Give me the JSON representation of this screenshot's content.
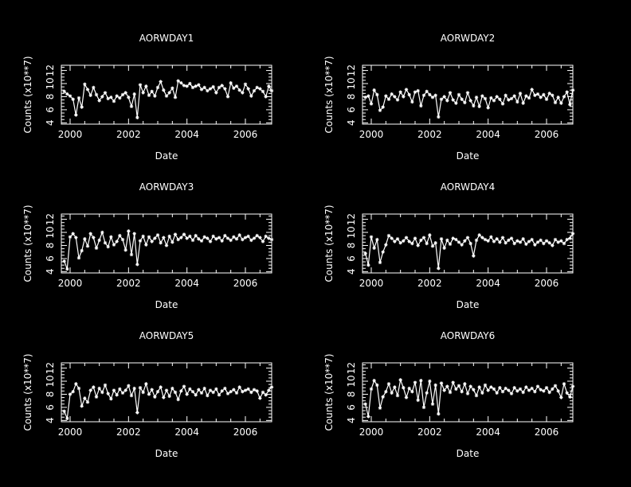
{
  "colors": {
    "background": "#000000",
    "foreground": "#ffffff"
  },
  "chart_data": [
    {
      "type": "line",
      "title": "AORWDAY1",
      "xlabel": "Date",
      "ylabel": "Counts (x10**7)",
      "xlim": [
        1999.7,
        2006.9
      ],
      "ylim": [
        3.8,
        12.8
      ],
      "xticks": [
        "2000",
        "2002",
        "2004",
        "2006"
      ],
      "yticks": [
        "4",
        "6",
        "8",
        "10",
        "12"
      ],
      "marker": "asterisk",
      "series": [
        {
          "x": [
            1999.8,
            1999.9,
            2000.0,
            2000.1,
            2000.2,
            2000.3,
            2000.4,
            2000.5,
            2000.6,
            2000.7,
            2000.8,
            2000.9,
            2001.0,
            2001.1,
            2001.2,
            2001.3,
            2001.4,
            2001.5,
            2001.6,
            2001.7,
            2001.8,
            2001.9,
            2002.0,
            2002.1,
            2002.2,
            2002.3,
            2002.4,
            2002.5,
            2002.6,
            2002.7,
            2002.8,
            2002.9,
            2003.0,
            2003.1,
            2003.2,
            2003.3,
            2003.4,
            2003.5,
            2003.6,
            2003.7,
            2003.8,
            2003.9,
            2004.0,
            2004.1,
            2004.2,
            2004.3,
            2004.4,
            2004.5,
            2004.6,
            2004.7,
            2004.8,
            2004.9,
            2005.0,
            2005.1,
            2005.2,
            2005.3,
            2005.4,
            2005.5,
            2005.6,
            2005.7,
            2005.8,
            2005.9,
            2006.0,
            2006.1,
            2006.2,
            2006.3,
            2006.4,
            2006.5,
            2006.6,
            2006.7,
            2006.8,
            2006.9
          ],
          "y": [
            8.8,
            8.4,
            8.1,
            7.6,
            5.2,
            7.8,
            6.4,
            9.9,
            9.1,
            8.2,
            9.4,
            8.3,
            7.4,
            8.0,
            8.6,
            7.7,
            7.9,
            7.3,
            8.1,
            7.8,
            8.3,
            8.6,
            7.9,
            6.5,
            8.4,
            4.8,
            9.8,
            8.6,
            9.6,
            8.2,
            8.8,
            8.1,
            9.4,
            10.3,
            9.0,
            8.1,
            8.6,
            9.3,
            7.9,
            10.4,
            10.1,
            9.7,
            9.6,
            10.0,
            9.4,
            9.6,
            9.8,
            9.1,
            9.4,
            8.9,
            9.2,
            9.5,
            8.6,
            9.4,
            9.7,
            9.2,
            8.0,
            10.1,
            9.3,
            9.6,
            9.0,
            8.6,
            9.9,
            9.2,
            8.1,
            8.9,
            9.4,
            9.2,
            8.8,
            8.0,
            9.6,
            8.9
          ]
        }
      ]
    },
    {
      "type": "line",
      "title": "AORWDAY2",
      "xlabel": "Date",
      "ylabel": "Counts (x10**7)",
      "xlim": [
        1999.7,
        2006.9
      ],
      "ylim": [
        3.8,
        12.8
      ],
      "xticks": [
        "2000",
        "2002",
        "2004",
        "2006"
      ],
      "yticks": [
        "4",
        "6",
        "8",
        "10",
        "12"
      ],
      "marker": "asterisk",
      "series": [
        {
          "x": [
            1999.8,
            1999.9,
            2000.0,
            2000.1,
            2000.2,
            2000.3,
            2000.4,
            2000.5,
            2000.6,
            2000.7,
            2000.8,
            2000.9,
            2001.0,
            2001.1,
            2001.2,
            2001.3,
            2001.4,
            2001.5,
            2001.6,
            2001.7,
            2001.8,
            2001.9,
            2002.0,
            2002.1,
            2002.2,
            2002.3,
            2002.4,
            2002.5,
            2002.6,
            2002.7,
            2002.8,
            2002.9,
            2003.0,
            2003.1,
            2003.2,
            2003.3,
            2003.4,
            2003.5,
            2003.6,
            2003.7,
            2003.8,
            2003.9,
            2004.0,
            2004.1,
            2004.2,
            2004.3,
            2004.4,
            2004.5,
            2004.6,
            2004.7,
            2004.8,
            2004.9,
            2005.0,
            2005.1,
            2005.2,
            2005.3,
            2005.4,
            2005.5,
            2005.6,
            2005.7,
            2005.8,
            2005.9,
            2006.0,
            2006.1,
            2006.2,
            2006.3,
            2006.4,
            2006.5,
            2006.6,
            2006.7,
            2006.8,
            2006.9
          ],
          "y": [
            7.9,
            8.1,
            6.9,
            9.0,
            8.3,
            5.9,
            6.4,
            8.1,
            7.6,
            8.4,
            8.0,
            7.5,
            8.7,
            8.0,
            9.1,
            8.3,
            7.2,
            8.7,
            8.9,
            6.6,
            8.2,
            8.8,
            8.3,
            7.9,
            8.2,
            4.9,
            7.6,
            8.0,
            7.4,
            8.6,
            7.5,
            7.0,
            8.3,
            7.6,
            7.1,
            8.6,
            7.4,
            6.6,
            7.9,
            6.5,
            8.1,
            7.7,
            6.3,
            7.8,
            7.4,
            8.0,
            7.6,
            6.9,
            8.2,
            7.5,
            7.7,
            8.1,
            7.2,
            8.5,
            7.0,
            8.1,
            7.8,
            9.1,
            8.2,
            8.4,
            7.9,
            8.3,
            7.6,
            8.5,
            8.2,
            7.1,
            7.9,
            7.0,
            8.0,
            8.7,
            6.8,
            9.0
          ]
        }
      ]
    },
    {
      "type": "line",
      "title": "AORWDAY3",
      "xlabel": "Date",
      "ylabel": "Counts (x10**7)",
      "xlim": [
        1999.7,
        2006.9
      ],
      "ylim": [
        3.8,
        12.8
      ],
      "xticks": [
        "2000",
        "2002",
        "2004",
        "2006"
      ],
      "yticks": [
        "4",
        "6",
        "8",
        "10",
        "12"
      ],
      "marker": "asterisk",
      "series": [
        {
          "x": [
            1999.8,
            1999.9,
            2000.0,
            2000.1,
            2000.2,
            2000.3,
            2000.4,
            2000.5,
            2000.6,
            2000.7,
            2000.8,
            2000.9,
            2001.0,
            2001.1,
            2001.2,
            2001.3,
            2001.4,
            2001.5,
            2001.6,
            2001.7,
            2001.8,
            2001.9,
            2002.0,
            2002.1,
            2002.2,
            2002.3,
            2002.4,
            2002.5,
            2002.6,
            2002.7,
            2002.8,
            2002.9,
            2003.0,
            2003.1,
            2003.2,
            2003.3,
            2003.4,
            2003.5,
            2003.6,
            2003.7,
            2003.8,
            2003.9,
            2004.0,
            2004.1,
            2004.2,
            2004.3,
            2004.4,
            2004.5,
            2004.6,
            2004.7,
            2004.8,
            2004.9,
            2005.0,
            2005.1,
            2005.2,
            2005.3,
            2005.4,
            2005.5,
            2005.6,
            2005.7,
            2005.8,
            2005.9,
            2006.0,
            2006.1,
            2006.2,
            2006.3,
            2006.4,
            2006.5,
            2006.6,
            2006.7,
            2006.8,
            2006.9
          ],
          "y": [
            5.6,
            4.4,
            9.3,
            9.8,
            9.2,
            6.1,
            7.2,
            9.0,
            7.9,
            9.8,
            9.2,
            7.6,
            8.8,
            10.0,
            8.4,
            7.8,
            9.3,
            8.1,
            8.6,
            9.5,
            8.9,
            7.3,
            10.2,
            6.6,
            9.8,
            5.1,
            8.7,
            9.4,
            8.1,
            9.3,
            8.6,
            9.1,
            9.6,
            8.4,
            9.2,
            8.0,
            9.4,
            8.5,
            9.7,
            8.9,
            9.2,
            9.7,
            9.1,
            9.4,
            8.8,
            9.5,
            9.0,
            8.7,
            9.3,
            9.1,
            8.6,
            9.4,
            9.0,
            9.2,
            8.7,
            9.5,
            9.1,
            8.8,
            9.3,
            9.0,
            9.6,
            8.9,
            9.2,
            9.4,
            8.8,
            9.1,
            9.5,
            9.2,
            8.6,
            9.4,
            9.1,
            8.9
          ]
        }
      ]
    },
    {
      "type": "line",
      "title": "AORWDAY4",
      "xlabel": "Date",
      "ylabel": "Counts (x10**7)",
      "xlim": [
        1999.7,
        2006.9
      ],
      "ylim": [
        3.8,
        12.8
      ],
      "xticks": [
        "2000",
        "2002",
        "2004",
        "2006"
      ],
      "yticks": [
        "4",
        "6",
        "8",
        "10",
        "12"
      ],
      "marker": "asterisk",
      "series": [
        {
          "x": [
            1999.8,
            1999.9,
            2000.0,
            2000.1,
            2000.2,
            2000.3,
            2000.4,
            2000.5,
            2000.6,
            2000.7,
            2000.8,
            2000.9,
            2001.0,
            2001.1,
            2001.2,
            2001.3,
            2001.4,
            2001.5,
            2001.6,
            2001.7,
            2001.8,
            2001.9,
            2002.0,
            2002.1,
            2002.2,
            2002.3,
            2002.4,
            2002.5,
            2002.6,
            2002.7,
            2002.8,
            2002.9,
            2003.0,
            2003.1,
            2003.2,
            2003.3,
            2003.4,
            2003.5,
            2003.6,
            2003.7,
            2003.8,
            2003.9,
            2004.0,
            2004.1,
            2004.2,
            2004.3,
            2004.4,
            2004.5,
            2004.6,
            2004.7,
            2004.8,
            2004.9,
            2005.0,
            2005.1,
            2005.2,
            2005.3,
            2005.4,
            2005.5,
            2005.6,
            2005.7,
            2005.8,
            2005.9,
            2006.0,
            2006.1,
            2006.2,
            2006.3,
            2006.4,
            2006.5,
            2006.6,
            2006.7,
            2006.8,
            2006.9
          ],
          "y": [
            6.8,
            5.0,
            9.3,
            7.6,
            8.9,
            5.4,
            7.0,
            8.1,
            9.5,
            9.1,
            8.6,
            9.0,
            8.4,
            8.7,
            9.2,
            8.6,
            8.3,
            9.1,
            8.0,
            8.8,
            9.2,
            8.3,
            9.6,
            7.9,
            8.4,
            4.5,
            9.0,
            7.6,
            8.8,
            8.2,
            9.1,
            8.9,
            8.5,
            8.1,
            8.7,
            9.2,
            8.3,
            6.4,
            8.8,
            9.6,
            9.2,
            8.9,
            8.7,
            9.3,
            8.6,
            9.0,
            8.5,
            9.2,
            8.4,
            8.8,
            9.1,
            8.3,
            8.7,
            8.5,
            9.0,
            8.2,
            8.6,
            8.9,
            8.1,
            8.5,
            8.8,
            8.3,
            8.7,
            8.4,
            8.0,
            8.9,
            8.5,
            8.7,
            8.3,
            8.9,
            9.1,
            9.8
          ]
        }
      ]
    },
    {
      "type": "line",
      "title": "AORWDAY5",
      "xlabel": "Date",
      "ylabel": "Counts (x10**7)",
      "xlim": [
        1999.7,
        2006.9
      ],
      "ylim": [
        3.8,
        12.8
      ],
      "xticks": [
        "2000",
        "2002",
        "2004",
        "2006"
      ],
      "yticks": [
        "4",
        "6",
        "8",
        "10",
        "12"
      ],
      "marker": "asterisk",
      "series": [
        {
          "x": [
            1999.8,
            1999.9,
            2000.0,
            2000.1,
            2000.2,
            2000.3,
            2000.4,
            2000.5,
            2000.6,
            2000.7,
            2000.8,
            2000.9,
            2001.0,
            2001.1,
            2001.2,
            2001.3,
            2001.4,
            2001.5,
            2001.6,
            2001.7,
            2001.8,
            2001.9,
            2002.0,
            2002.1,
            2002.2,
            2002.3,
            2002.4,
            2002.5,
            2002.6,
            2002.7,
            2002.8,
            2002.9,
            2003.0,
            2003.1,
            2003.2,
            2003.3,
            2003.4,
            2003.5,
            2003.6,
            2003.7,
            2003.8,
            2003.9,
            2004.0,
            2004.1,
            2004.2,
            2004.3,
            2004.4,
            2004.5,
            2004.6,
            2004.7,
            2004.8,
            2004.9,
            2005.0,
            2005.1,
            2005.2,
            2005.3,
            2005.4,
            2005.5,
            2005.6,
            2005.7,
            2005.8,
            2005.9,
            2006.0,
            2006.1,
            2006.2,
            2006.3,
            2006.4,
            2006.5,
            2006.6,
            2006.7,
            2006.8,
            2006.9
          ],
          "y": [
            5.4,
            4.3,
            8.0,
            8.4,
            9.6,
            8.9,
            6.2,
            7.4,
            6.8,
            8.6,
            9.1,
            7.6,
            8.9,
            8.3,
            9.4,
            8.1,
            7.3,
            8.6,
            7.9,
            8.8,
            8.2,
            8.6,
            9.3,
            7.8,
            8.9,
            5.2,
            9.0,
            8.3,
            9.6,
            8.0,
            8.7,
            7.6,
            8.4,
            9.1,
            7.5,
            8.6,
            7.7,
            8.9,
            8.3,
            7.2,
            8.5,
            9.2,
            8.0,
            8.8,
            8.4,
            7.9,
            8.7,
            8.2,
            8.9,
            7.8,
            8.6,
            8.3,
            8.8,
            7.9,
            8.5,
            8.9,
            8.1,
            8.4,
            8.7,
            8.2,
            9.1,
            8.4,
            8.6,
            8.8,
            8.3,
            8.7,
            8.5,
            7.4,
            8.3,
            7.9,
            8.6,
            9.1
          ]
        }
      ]
    },
    {
      "type": "line",
      "title": "AORWDAY6",
      "xlabel": "Date",
      "ylabel": "Counts (x10**7)",
      "xlim": [
        1999.7,
        2006.9
      ],
      "ylim": [
        3.8,
        12.8
      ],
      "xticks": [
        "2000",
        "2002",
        "2004",
        "2006"
      ],
      "yticks": [
        "4",
        "6",
        "8",
        "10",
        "12"
      ],
      "marker": "asterisk",
      "series": [
        {
          "x": [
            1999.8,
            1999.9,
            2000.0,
            2000.1,
            2000.2,
            2000.3,
            2000.4,
            2000.5,
            2000.6,
            2000.7,
            2000.8,
            2000.9,
            2001.0,
            2001.1,
            2001.2,
            2001.3,
            2001.4,
            2001.5,
            2001.6,
            2001.7,
            2001.8,
            2001.9,
            2002.0,
            2002.1,
            2002.2,
            2002.3,
            2002.4,
            2002.5,
            2002.6,
            2002.7,
            2002.8,
            2002.9,
            2003.0,
            2003.1,
            2003.2,
            2003.3,
            2003.4,
            2003.5,
            2003.6,
            2003.7,
            2003.8,
            2003.9,
            2004.0,
            2004.1,
            2004.2,
            2004.3,
            2004.4,
            2004.5,
            2004.6,
            2004.7,
            2004.8,
            2004.9,
            2005.0,
            2005.1,
            2005.2,
            2005.3,
            2005.4,
            2005.5,
            2005.6,
            2005.7,
            2005.8,
            2005.9,
            2006.0,
            2006.1,
            2006.2,
            2006.3,
            2006.4,
            2006.5,
            2006.6,
            2006.7,
            2006.8,
            2006.9
          ],
          "y": [
            6.5,
            4.6,
            8.8,
            10.1,
            9.4,
            5.9,
            7.6,
            8.4,
            9.6,
            8.2,
            9.1,
            7.8,
            10.2,
            9.0,
            7.5,
            8.9,
            8.4,
            9.8,
            7.1,
            10.1,
            6.0,
            8.2,
            10.0,
            6.5,
            9.4,
            5.0,
            9.7,
            8.6,
            9.2,
            8.3,
            9.8,
            8.8,
            9.3,
            8.4,
            9.6,
            8.1,
            9.2,
            8.7,
            7.8,
            9.1,
            8.2,
            9.4,
            8.6,
            9.1,
            8.8,
            8.2,
            9.0,
            8.4,
            8.9,
            8.6,
            8.1,
            9.0,
            8.5,
            8.8,
            8.3,
            9.1,
            8.6,
            8.9,
            8.4,
            9.2,
            8.7,
            8.5,
            9.0,
            8.3,
            8.8,
            9.3,
            8.5,
            7.5,
            9.6,
            8.2,
            7.6,
            9.2
          ]
        }
      ]
    }
  ]
}
